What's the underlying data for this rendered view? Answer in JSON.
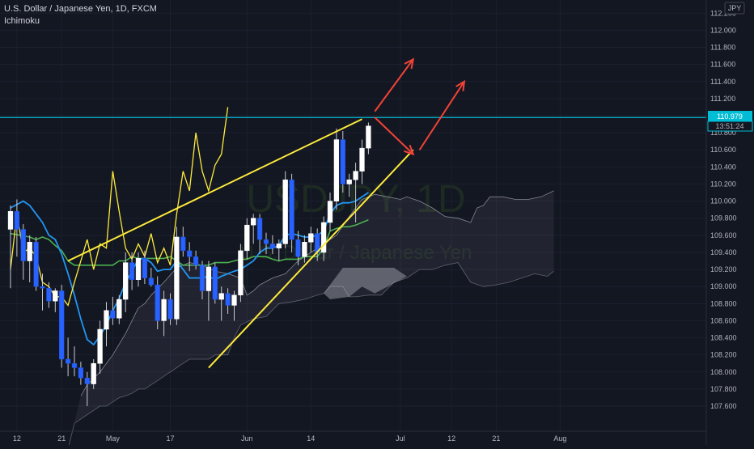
{
  "header": {
    "symbol_title": "U.S. Dollar / Japanese Yen, 1D, FXCM",
    "indicator": "Ichimoku"
  },
  "watermark": {
    "ticker": "USDJPY, 1D",
    "name": "U.S. Dollar / Japanese Yen"
  },
  "price_axis": {
    "currency_badge": "JPY",
    "current_price": "110.979",
    "countdown": "13:51:24"
  },
  "colors": {
    "background": "#131722",
    "up_candle": "#ffffff",
    "down_candle": "#2962ff",
    "tenkan": "#2196f3",
    "kijun": "#4caf50",
    "chikou": "#ffeb3b",
    "span_line": "#b2b5be",
    "trendline": "#ffeb3b",
    "arrows": "#f44336",
    "price_line": "#00bcd4"
  },
  "chart_data": {
    "type": "candlestick",
    "instrument": "USDJPY",
    "timeframe": "1D",
    "source": "FXCM",
    "yticks": [
      107.6,
      107.8,
      108.0,
      108.2,
      108.4,
      108.6,
      108.8,
      109.0,
      109.2,
      109.4,
      109.6,
      109.8,
      110.0,
      110.2,
      110.4,
      110.6,
      110.8,
      111.0,
      111.2,
      111.4,
      111.6,
      111.8,
      112.0,
      112.2
    ],
    "ylim": [
      107.5,
      112.25
    ],
    "xticks": [
      {
        "label": "12",
        "i": 1
      },
      {
        "label": "21",
        "i": 8
      },
      {
        "label": "May",
        "i": 16
      },
      {
        "label": "17",
        "i": 25
      },
      {
        "label": "Jun",
        "i": 37
      },
      {
        "label": "14",
        "i": 47
      },
      {
        "label": "Jul",
        "i": 61
      },
      {
        "label": "12",
        "i": 69
      },
      {
        "label": "21",
        "i": 76
      },
      {
        "label": "Aug",
        "i": 86
      }
    ],
    "candles": [
      {
        "i": 0,
        "o": 109.67,
        "h": 109.95,
        "l": 108.98,
        "c": 109.88
      },
      {
        "i": 1,
        "o": 109.88,
        "h": 110.02,
        "l": 109.35,
        "c": 109.67
      },
      {
        "i": 2,
        "o": 109.67,
        "h": 109.73,
        "l": 109.08,
        "c": 109.3
      },
      {
        "i": 3,
        "o": 109.3,
        "h": 109.6,
        "l": 109.05,
        "c": 109.52
      },
      {
        "i": 4,
        "o": 109.52,
        "h": 109.58,
        "l": 108.95,
        "c": 109.0
      },
      {
        "i": 5,
        "o": 109.0,
        "h": 109.15,
        "l": 108.72,
        "c": 108.98
      },
      {
        "i": 6,
        "o": 108.98,
        "h": 109.05,
        "l": 108.75,
        "c": 108.83
      },
      {
        "i": 7,
        "o": 108.83,
        "h": 108.98,
        "l": 108.7,
        "c": 108.95
      },
      {
        "i": 8,
        "o": 108.95,
        "h": 109.02,
        "l": 108.05,
        "c": 108.15
      },
      {
        "i": 9,
        "o": 108.15,
        "h": 108.4,
        "l": 107.95,
        "c": 108.1
      },
      {
        "i": 10,
        "o": 108.1,
        "h": 108.3,
        "l": 107.95,
        "c": 108.05
      },
      {
        "i": 11,
        "o": 108.05,
        "h": 108.12,
        "l": 107.85,
        "c": 107.93
      },
      {
        "i": 12,
        "o": 107.93,
        "h": 108.0,
        "l": 107.6,
        "c": 107.86
      },
      {
        "i": 13,
        "o": 107.86,
        "h": 108.15,
        "l": 107.8,
        "c": 108.1
      },
      {
        "i": 14,
        "o": 108.1,
        "h": 108.6,
        "l": 107.98,
        "c": 108.5
      },
      {
        "i": 15,
        "o": 108.5,
        "h": 108.82,
        "l": 108.3,
        "c": 108.72
      },
      {
        "i": 16,
        "o": 108.72,
        "h": 108.88,
        "l": 108.55,
        "c": 108.63
      },
      {
        "i": 17,
        "o": 108.63,
        "h": 108.9,
        "l": 108.56,
        "c": 108.85
      },
      {
        "i": 18,
        "o": 108.85,
        "h": 109.4,
        "l": 108.7,
        "c": 109.28
      },
      {
        "i": 19,
        "o": 109.28,
        "h": 109.4,
        "l": 108.96,
        "c": 109.08
      },
      {
        "i": 20,
        "o": 109.08,
        "h": 109.4,
        "l": 109.0,
        "c": 109.33
      },
      {
        "i": 21,
        "o": 109.33,
        "h": 109.42,
        "l": 109.03,
        "c": 109.1
      },
      {
        "i": 22,
        "o": 109.1,
        "h": 109.22,
        "l": 109.0,
        "c": 109.02
      },
      {
        "i": 23,
        "o": 109.02,
        "h": 109.12,
        "l": 108.5,
        "c": 108.6
      },
      {
        "i": 24,
        "o": 108.6,
        "h": 108.95,
        "l": 108.42,
        "c": 108.85
      },
      {
        "i": 25,
        "o": 108.85,
        "h": 108.92,
        "l": 108.55,
        "c": 108.62
      },
      {
        "i": 26,
        "o": 108.62,
        "h": 109.7,
        "l": 108.55,
        "c": 109.58
      },
      {
        "i": 27,
        "o": 109.58,
        "h": 109.7,
        "l": 109.35,
        "c": 109.42
      },
      {
        "i": 28,
        "o": 109.42,
        "h": 109.52,
        "l": 109.18,
        "c": 109.35
      },
      {
        "i": 29,
        "o": 109.35,
        "h": 109.42,
        "l": 109.2,
        "c": 109.25
      },
      {
        "i": 30,
        "o": 109.25,
        "h": 109.3,
        "l": 108.85,
        "c": 108.95
      },
      {
        "i": 31,
        "o": 108.95,
        "h": 109.3,
        "l": 108.6,
        "c": 109.23
      },
      {
        "i": 32,
        "o": 109.23,
        "h": 109.28,
        "l": 108.8,
        "c": 108.85
      },
      {
        "i": 33,
        "o": 108.85,
        "h": 109.0,
        "l": 108.6,
        "c": 108.92
      },
      {
        "i": 34,
        "o": 108.92,
        "h": 108.98,
        "l": 108.68,
        "c": 108.78
      },
      {
        "i": 35,
        "o": 108.78,
        "h": 108.95,
        "l": 108.6,
        "c": 108.9
      },
      {
        "i": 36,
        "o": 108.9,
        "h": 109.5,
        "l": 108.82,
        "c": 109.42
      },
      {
        "i": 37,
        "o": 109.42,
        "h": 109.8,
        "l": 109.32,
        "c": 109.72
      },
      {
        "i": 38,
        "o": 109.72,
        "h": 109.85,
        "l": 109.5,
        "c": 109.8
      },
      {
        "i": 39,
        "o": 109.8,
        "h": 109.85,
        "l": 109.38,
        "c": 109.55
      },
      {
        "i": 40,
        "o": 109.55,
        "h": 109.63,
        "l": 109.38,
        "c": 109.5
      },
      {
        "i": 41,
        "o": 109.5,
        "h": 109.6,
        "l": 109.38,
        "c": 109.45
      },
      {
        "i": 42,
        "o": 109.45,
        "h": 109.55,
        "l": 109.3,
        "c": 109.5
      },
      {
        "i": 43,
        "o": 109.5,
        "h": 110.35,
        "l": 109.45,
        "c": 110.25
      },
      {
        "i": 44,
        "o": 110.25,
        "h": 110.32,
        "l": 109.4,
        "c": 109.55
      },
      {
        "i": 45,
        "o": 109.55,
        "h": 109.65,
        "l": 109.25,
        "c": 109.35
      },
      {
        "i": 46,
        "o": 109.35,
        "h": 109.6,
        "l": 109.28,
        "c": 109.52
      },
      {
        "i": 47,
        "o": 109.52,
        "h": 109.7,
        "l": 109.4,
        "c": 109.62
      },
      {
        "i": 48,
        "o": 109.62,
        "h": 109.68,
        "l": 109.3,
        "c": 109.4
      },
      {
        "i": 49,
        "o": 109.4,
        "h": 109.82,
        "l": 109.3,
        "c": 109.75
      },
      {
        "i": 50,
        "o": 109.75,
        "h": 110.1,
        "l": 109.65,
        "c": 110.0
      },
      {
        "i": 51,
        "o": 110.0,
        "h": 110.85,
        "l": 109.9,
        "c": 110.72
      },
      {
        "i": 52,
        "o": 110.72,
        "h": 110.82,
        "l": 110.1,
        "c": 110.2
      },
      {
        "i": 53,
        "o": 110.2,
        "h": 110.32,
        "l": 110.05,
        "c": 110.25
      },
      {
        "i": 54,
        "o": 110.25,
        "h": 110.45,
        "l": 109.75,
        "c": 110.35
      },
      {
        "i": 55,
        "o": 110.35,
        "h": 110.72,
        "l": 110.2,
        "c": 110.62
      },
      {
        "i": 56,
        "o": 110.62,
        "h": 110.92,
        "l": 110.55,
        "c": 110.88
      }
    ],
    "tenkan": [
      [
        0,
        109.92
      ],
      [
        2,
        110.0
      ],
      [
        3,
        109.95
      ],
      [
        4,
        109.85
      ],
      [
        5,
        109.75
      ],
      [
        6,
        109.6
      ],
      [
        7,
        109.55
      ],
      [
        8,
        109.38
      ],
      [
        9,
        109.15
      ],
      [
        10,
        108.9
      ],
      [
        11,
        108.62
      ],
      [
        12,
        108.38
      ],
      [
        13,
        108.32
      ],
      [
        14,
        108.42
      ],
      [
        15,
        108.55
      ],
      [
        16,
        108.72
      ],
      [
        17,
        108.86
      ],
      [
        18,
        109.05
      ],
      [
        19,
        109.18
      ],
      [
        20,
        109.32
      ],
      [
        21,
        109.33
      ],
      [
        22,
        109.28
      ],
      [
        23,
        109.18
      ],
      [
        24,
        109.2
      ],
      [
        25,
        109.2
      ],
      [
        26,
        109.3
      ],
      [
        27,
        109.2
      ],
      [
        28,
        109.1
      ],
      [
        29,
        109.1
      ],
      [
        30,
        109.1
      ],
      [
        31,
        109.12
      ],
      [
        32,
        109.08
      ],
      [
        33,
        109.12
      ],
      [
        34,
        109.15
      ],
      [
        35,
        109.18
      ],
      [
        36,
        109.2
      ],
      [
        37,
        109.25
      ],
      [
        38,
        109.3
      ],
      [
        39,
        109.4
      ],
      [
        40,
        109.45
      ],
      [
        41,
        109.45
      ],
      [
        42,
        109.48
      ],
      [
        43,
        109.6
      ],
      [
        44,
        109.62
      ],
      [
        45,
        109.6
      ],
      [
        46,
        109.58
      ],
      [
        47,
        109.58
      ],
      [
        48,
        109.6
      ],
      [
        49,
        109.65
      ],
      [
        50,
        109.85
      ],
      [
        51,
        109.95
      ],
      [
        52,
        109.98
      ],
      [
        53,
        109.98
      ],
      [
        54,
        110.0
      ],
      [
        55,
        110.05
      ],
      [
        56,
        110.1
      ]
    ],
    "kijun": [
      [
        0,
        109.62
      ],
      [
        3,
        109.58
      ],
      [
        4,
        109.55
      ],
      [
        5,
        109.58
      ],
      [
        6,
        109.55
      ],
      [
        7,
        109.48
      ],
      [
        8,
        109.42
      ],
      [
        9,
        109.3
      ],
      [
        10,
        109.25
      ],
      [
        11,
        109.25
      ],
      [
        12,
        109.25
      ],
      [
        13,
        109.25
      ],
      [
        14,
        109.25
      ],
      [
        15,
        109.25
      ],
      [
        16,
        109.25
      ],
      [
        17,
        109.3
      ],
      [
        18,
        109.3
      ],
      [
        19,
        109.35
      ],
      [
        20,
        109.33
      ],
      [
        21,
        109.33
      ],
      [
        22,
        109.33
      ],
      [
        23,
        109.33
      ],
      [
        24,
        109.33
      ],
      [
        25,
        109.35
      ],
      [
        26,
        109.3
      ],
      [
        27,
        109.25
      ],
      [
        28,
        109.25
      ],
      [
        29,
        109.25
      ],
      [
        30,
        109.25
      ],
      [
        31,
        109.25
      ],
      [
        32,
        109.28
      ],
      [
        33,
        109.28
      ],
      [
        34,
        109.28
      ],
      [
        35,
        109.3
      ],
      [
        36,
        109.32
      ],
      [
        37,
        109.32
      ],
      [
        38,
        109.35
      ],
      [
        39,
        109.35
      ],
      [
        40,
        109.35
      ],
      [
        41,
        109.32
      ],
      [
        42,
        109.3
      ],
      [
        43,
        109.32
      ],
      [
        44,
        109.32
      ],
      [
        45,
        109.32
      ],
      [
        46,
        109.35
      ],
      [
        47,
        109.35
      ],
      [
        48,
        109.35
      ],
      [
        49,
        109.45
      ],
      [
        50,
        109.65
      ],
      [
        51,
        109.68
      ],
      [
        52,
        109.7
      ],
      [
        53,
        109.7
      ],
      [
        54,
        109.72
      ],
      [
        55,
        109.75
      ],
      [
        56,
        109.78
      ]
    ],
    "chikou": [
      [
        0,
        109.2
      ],
      [
        1,
        109.85
      ],
      [
        2,
        109.4
      ],
      [
        3,
        109.45
      ],
      [
        4,
        109.35
      ],
      [
        5,
        109.05
      ],
      [
        6,
        109.0
      ],
      [
        7,
        108.88
      ],
      [
        8,
        108.88
      ],
      [
        9,
        108.78
      ],
      [
        10,
        109.05
      ],
      [
        11,
        109.3
      ],
      [
        12,
        109.55
      ],
      [
        13,
        109.2
      ],
      [
        14,
        109.5
      ],
      [
        15,
        109.45
      ],
      [
        16,
        110.35
      ],
      [
        17,
        109.88
      ],
      [
        18,
        109.45
      ],
      [
        19,
        109.32
      ],
      [
        20,
        109.5
      ],
      [
        21,
        109.35
      ],
      [
        22,
        109.62
      ],
      [
        23,
        109.28
      ],
      [
        24,
        109.45
      ],
      [
        25,
        109.25
      ],
      [
        26,
        109.85
      ],
      [
        27,
        110.35
      ],
      [
        28,
        110.12
      ],
      [
        29,
        110.8
      ],
      [
        30,
        110.35
      ],
      [
        31,
        110.12
      ],
      [
        32,
        110.42
      ],
      [
        33,
        110.55
      ],
      [
        34,
        111.1
      ]
    ],
    "span_a": [
      [
        11,
        107.72
      ],
      [
        12,
        107.85
      ],
      [
        14,
        108.0
      ],
      [
        16,
        108.2
      ],
      [
        18,
        108.45
      ],
      [
        20,
        108.75
      ],
      [
        21,
        108.8
      ],
      [
        22,
        108.9
      ],
      [
        24,
        109.05
      ],
      [
        26,
        109.22
      ],
      [
        28,
        109.28
      ],
      [
        30,
        109.25
      ],
      [
        32,
        109.18
      ],
      [
        34,
        109.15
      ],
      [
        36,
        109.1
      ],
      [
        37,
        108.9
      ],
      [
        38,
        108.95
      ],
      [
        39,
        109.02
      ],
      [
        41,
        109.1
      ],
      [
        43,
        109.15
      ],
      [
        45,
        109.3
      ],
      [
        47,
        109.4
      ],
      [
        49,
        109.5
      ],
      [
        51,
        109.6
      ],
      [
        53,
        109.82
      ],
      [
        55,
        110.02
      ],
      [
        57,
        110.08
      ],
      [
        59,
        110.05
      ],
      [
        61,
        110.02
      ],
      [
        62,
        110.05
      ],
      [
        64,
        110.0
      ],
      [
        66,
        109.92
      ],
      [
        68,
        109.82
      ],
      [
        70,
        109.8
      ],
      [
        72,
        109.75
      ],
      [
        73,
        109.92
      ],
      [
        74,
        109.95
      ],
      [
        75,
        110.05
      ],
      [
        77,
        110.05
      ],
      [
        79,
        110.02
      ],
      [
        81,
        110.02
      ],
      [
        83,
        110.05
      ],
      [
        85,
        110.12
      ]
    ],
    "span_b": [
      [
        9,
        107.1
      ],
      [
        10,
        107.4
      ],
      [
        11,
        107.45
      ],
      [
        12,
        107.5
      ],
      [
        13,
        107.55
      ],
      [
        14,
        107.6
      ],
      [
        15,
        107.6
      ],
      [
        16,
        107.65
      ],
      [
        17,
        107.7
      ],
      [
        18,
        107.72
      ],
      [
        19,
        107.75
      ],
      [
        20,
        107.8
      ],
      [
        21,
        107.8
      ],
      [
        22,
        107.85
      ],
      [
        23,
        107.9
      ],
      [
        24,
        107.95
      ],
      [
        25,
        108.0
      ],
      [
        26,
        108.05
      ],
      [
        27,
        108.1
      ],
      [
        28,
        108.15
      ],
      [
        29,
        108.15
      ],
      [
        30,
        108.15
      ],
      [
        31,
        108.15
      ],
      [
        32,
        108.2
      ],
      [
        33,
        108.2
      ],
      [
        34,
        108.2
      ],
      [
        35,
        108.4
      ],
      [
        36,
        108.55
      ],
      [
        38,
        108.62
      ],
      [
        40,
        108.65
      ],
      [
        42,
        108.8
      ],
      [
        44,
        108.82
      ],
      [
        46,
        108.85
      ],
      [
        48,
        108.9
      ],
      [
        49,
        108.92
      ],
      [
        50,
        109.0
      ],
      [
        52,
        109.0
      ],
      [
        53,
        108.88
      ],
      [
        54,
        108.88
      ],
      [
        56,
        108.9
      ],
      [
        58,
        108.9
      ],
      [
        60,
        109.05
      ],
      [
        62,
        109.1
      ],
      [
        64,
        109.2
      ],
      [
        66,
        109.2
      ],
      [
        68,
        109.25
      ],
      [
        70,
        109.28
      ],
      [
        72,
        109.05
      ],
      [
        74,
        109.0
      ],
      [
        76,
        109.02
      ],
      [
        78,
        109.05
      ],
      [
        80,
        109.1
      ],
      [
        82,
        109.15
      ],
      [
        84,
        109.12
      ],
      [
        85,
        109.18
      ]
    ],
    "resistance_level": 110.979,
    "trendlines": [
      {
        "from": [
          9,
          109.3
        ],
        "to": [
          55,
          110.96
        ],
        "color": "#ffeb3b"
      },
      {
        "from": [
          31,
          108.05
        ],
        "to": [
          63,
          110.6
        ],
        "color": "#ffeb3b"
      }
    ],
    "projection_arrows": [
      {
        "from": [
          57,
          111.05
        ],
        "to": [
          63,
          111.66
        ],
        "name": "arrow-up-1"
      },
      {
        "from": [
          57,
          110.98
        ],
        "to": [
          63,
          110.55
        ],
        "name": "arrow-down"
      },
      {
        "from": [
          64,
          110.6
        ],
        "to": [
          71,
          111.4
        ],
        "name": "arrow-up-2"
      }
    ]
  }
}
